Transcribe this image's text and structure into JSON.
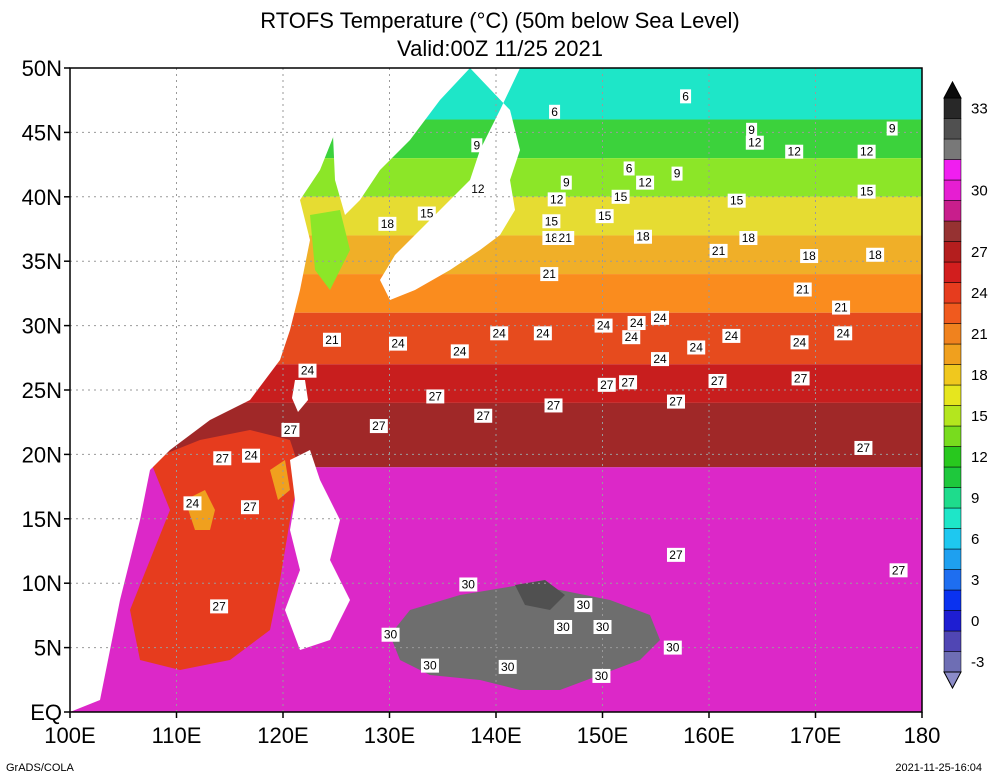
{
  "title": {
    "line1": "RTOFS Temperature (°C) (50m below Sea Level)",
    "line2": "Valid:00Z 11/25 2021"
  },
  "footer": {
    "credit": "GrADS/COLA",
    "timestamp": "2021-11-25-16:04"
  },
  "map": {
    "region": {
      "lon": [
        100,
        180
      ],
      "lat": [
        0,
        50
      ]
    },
    "lat_ticks": [
      {
        "value": 50,
        "label": "50N"
      },
      {
        "value": 45,
        "label": "45N"
      },
      {
        "value": 40,
        "label": "40N"
      },
      {
        "value": 35,
        "label": "35N"
      },
      {
        "value": 30,
        "label": "30N"
      },
      {
        "value": 25,
        "label": "25N"
      },
      {
        "value": 20,
        "label": "20N"
      },
      {
        "value": 15,
        "label": "15N"
      },
      {
        "value": 10,
        "label": "10N"
      },
      {
        "value": 5,
        "label": "5N"
      },
      {
        "value": 0,
        "label": "EQ"
      }
    ],
    "lon_ticks": [
      {
        "value": 100,
        "label": "100E"
      },
      {
        "value": 110,
        "label": "110E"
      },
      {
        "value": 120,
        "label": "120E"
      },
      {
        "value": 130,
        "label": "130E"
      },
      {
        "value": 140,
        "label": "140E"
      },
      {
        "value": 150,
        "label": "150E"
      },
      {
        "value": 160,
        "label": "160E"
      },
      {
        "value": 170,
        "label": "170E"
      },
      {
        "value": 180,
        "label": "180"
      }
    ],
    "grid": true,
    "bands": [
      {
        "lat": [
          46,
          50
        ],
        "color": "#1ee6c8"
      },
      {
        "lat": [
          43,
          46
        ],
        "color": "#3cd23c"
      },
      {
        "lat": [
          40,
          43
        ],
        "color": "#8ce628"
      },
      {
        "lat": [
          37,
          40
        ],
        "color": "#e6dc32"
      },
      {
        "lat": [
          34,
          37
        ],
        "color": "#f0af28"
      },
      {
        "lat": [
          31,
          34
        ],
        "color": "#fa8c1e"
      },
      {
        "lat": [
          27,
          31
        ],
        "color": "#e64b1e"
      },
      {
        "lat": [
          24,
          27
        ],
        "color": "#c81e1e"
      },
      {
        "lat": [
          19,
          24
        ],
        "color": "#a02828"
      },
      {
        "lat": [
          0,
          19
        ],
        "color": "#dc28c8"
      }
    ],
    "contour_labels": [
      {
        "text": "6",
        "lon": 145.5,
        "lat": 46.6
      },
      {
        "text": "6",
        "lon": 152.5,
        "lat": 42.2
      },
      {
        "text": "6",
        "lon": 157.8,
        "lat": 47.8
      },
      {
        "text": "9",
        "lon": 138.2,
        "lat": 44.0
      },
      {
        "text": "9",
        "lon": 146.6,
        "lat": 41.1
      },
      {
        "text": "9",
        "lon": 157.0,
        "lat": 41.8
      },
      {
        "text": "9",
        "lon": 164.0,
        "lat": 45.2
      },
      {
        "text": "9",
        "lon": 177.2,
        "lat": 45.3
      },
      {
        "text": "12",
        "lon": 138.3,
        "lat": 40.6
      },
      {
        "text": "12",
        "lon": 145.7,
        "lat": 39.8
      },
      {
        "text": "12",
        "lon": 154.0,
        "lat": 41.1
      },
      {
        "text": "12",
        "lon": 164.3,
        "lat": 44.2
      },
      {
        "text": "12",
        "lon": 168.0,
        "lat": 43.5
      },
      {
        "text": "12",
        "lon": 174.8,
        "lat": 43.5
      },
      {
        "text": "15",
        "lon": 133.5,
        "lat": 38.7
      },
      {
        "text": "15",
        "lon": 145.2,
        "lat": 38.1
      },
      {
        "text": "15",
        "lon": 151.7,
        "lat": 40.0
      },
      {
        "text": "15",
        "lon": 150.2,
        "lat": 38.5
      },
      {
        "text": "15",
        "lon": 162.6,
        "lat": 39.7
      },
      {
        "text": "15",
        "lon": 174.8,
        "lat": 40.4
      },
      {
        "text": "18",
        "lon": 129.8,
        "lat": 37.9
      },
      {
        "text": "18",
        "lon": 145.2,
        "lat": 36.8
      },
      {
        "text": "21",
        "lon": 146.5,
        "lat": 36.8
      },
      {
        "text": "18",
        "lon": 153.8,
        "lat": 36.9
      },
      {
        "text": "18",
        "lon": 163.7,
        "lat": 36.8
      },
      {
        "text": "18",
        "lon": 169.4,
        "lat": 35.4
      },
      {
        "text": "18",
        "lon": 175.6,
        "lat": 35.5
      },
      {
        "text": "21",
        "lon": 145.0,
        "lat": 34.0
      },
      {
        "text": "21",
        "lon": 160.9,
        "lat": 35.8
      },
      {
        "text": "21",
        "lon": 168.8,
        "lat": 32.8
      },
      {
        "text": "21",
        "lon": 172.4,
        "lat": 31.4
      },
      {
        "text": "21",
        "lon": 124.6,
        "lat": 28.9
      },
      {
        "text": "24",
        "lon": 130.8,
        "lat": 28.6
      },
      {
        "text": "24",
        "lon": 136.6,
        "lat": 28.0
      },
      {
        "text": "24",
        "lon": 140.3,
        "lat": 29.4
      },
      {
        "text": "24",
        "lon": 144.4,
        "lat": 29.4
      },
      {
        "text": "24",
        "lon": 150.1,
        "lat": 30.0
      },
      {
        "text": "24",
        "lon": 153.2,
        "lat": 30.2
      },
      {
        "text": "24",
        "lon": 155.4,
        "lat": 30.6
      },
      {
        "text": "24",
        "lon": 152.7,
        "lat": 29.1
      },
      {
        "text": "24",
        "lon": 155.4,
        "lat": 27.4
      },
      {
        "text": "24",
        "lon": 158.8,
        "lat": 28.3
      },
      {
        "text": "24",
        "lon": 162.1,
        "lat": 29.2
      },
      {
        "text": "24",
        "lon": 168.5,
        "lat": 28.7
      },
      {
        "text": "24",
        "lon": 172.6,
        "lat": 29.4
      },
      {
        "text": "24",
        "lon": 122.3,
        "lat": 26.5
      },
      {
        "text": "24",
        "lon": 117.0,
        "lat": 19.9
      },
      {
        "text": "24",
        "lon": 111.5,
        "lat": 16.2
      },
      {
        "text": "27",
        "lon": 134.3,
        "lat": 24.5
      },
      {
        "text": "27",
        "lon": 138.8,
        "lat": 23.0
      },
      {
        "text": "27",
        "lon": 129.0,
        "lat": 22.2
      },
      {
        "text": "27",
        "lon": 145.4,
        "lat": 23.8
      },
      {
        "text": "27",
        "lon": 150.4,
        "lat": 25.4
      },
      {
        "text": "27",
        "lon": 152.4,
        "lat": 25.6
      },
      {
        "text": "27",
        "lon": 156.9,
        "lat": 24.1
      },
      {
        "text": "27",
        "lon": 160.8,
        "lat": 25.7
      },
      {
        "text": "27",
        "lon": 168.6,
        "lat": 25.9
      },
      {
        "text": "27",
        "lon": 174.5,
        "lat": 20.5
      },
      {
        "text": "27",
        "lon": 120.7,
        "lat": 21.9
      },
      {
        "text": "27",
        "lon": 114.3,
        "lat": 19.7
      },
      {
        "text": "27",
        "lon": 116.9,
        "lat": 15.9
      },
      {
        "text": "27",
        "lon": 114.0,
        "lat": 8.2
      },
      {
        "text": "27",
        "lon": 156.9,
        "lat": 12.2
      },
      {
        "text": "27",
        "lon": 177.8,
        "lat": 11.0
      },
      {
        "text": "30",
        "lon": 137.4,
        "lat": 9.9
      },
      {
        "text": "30",
        "lon": 148.2,
        "lat": 8.3
      },
      {
        "text": "30",
        "lon": 146.3,
        "lat": 6.6
      },
      {
        "text": "30",
        "lon": 150.0,
        "lat": 6.6
      },
      {
        "text": "30",
        "lon": 130.1,
        "lat": 6.0
      },
      {
        "text": "30",
        "lon": 156.6,
        "lat": 5.0
      },
      {
        "text": "30",
        "lon": 133.8,
        "lat": 3.6
      },
      {
        "text": "30",
        "lon": 141.1,
        "lat": 3.5
      },
      {
        "text": "30",
        "lon": 149.9,
        "lat": 2.8
      }
    ]
  },
  "colorbar": {
    "levels": [
      {
        "label": "-3",
        "color": "#6e6eb4"
      },
      {
        "label": "",
        "color": "#5046b4"
      },
      {
        "label": "0",
        "color": "#1e1ed2"
      },
      {
        "label": "",
        "color": "#0a32f0"
      },
      {
        "label": "3",
        "color": "#1e6ef0"
      },
      {
        "label": "",
        "color": "#1ea0f0"
      },
      {
        "label": "6",
        "color": "#1ec8f0"
      },
      {
        "label": "",
        "color": "#1ee6c8"
      },
      {
        "label": "9",
        "color": "#1edc8c"
      },
      {
        "label": "",
        "color": "#1ec83c"
      },
      {
        "label": "12",
        "color": "#28c81e"
      },
      {
        "label": "",
        "color": "#78dc1e"
      },
      {
        "label": "15",
        "color": "#b4e61e"
      },
      {
        "label": "",
        "color": "#e6e61e"
      },
      {
        "label": "18",
        "color": "#f0c81e"
      },
      {
        "label": "",
        "color": "#f0a01e"
      },
      {
        "label": "21",
        "color": "#f0821e"
      },
      {
        "label": "",
        "color": "#f05a1e"
      },
      {
        "label": "24",
        "color": "#e63c1e"
      },
      {
        "label": "",
        "color": "#d21e1e"
      },
      {
        "label": "27",
        "color": "#b41e1e"
      },
      {
        "label": "",
        "color": "#963232"
      },
      {
        "label": "",
        "color": "#c81e8c"
      },
      {
        "label": "30",
        "color": "#e61ed2"
      },
      {
        "label": "",
        "color": "#f01ef0"
      },
      {
        "label": "",
        "color": "#787878"
      },
      {
        "label": "",
        "color": "#505050"
      },
      {
        "label": "33",
        "color": "#282828"
      }
    ]
  }
}
